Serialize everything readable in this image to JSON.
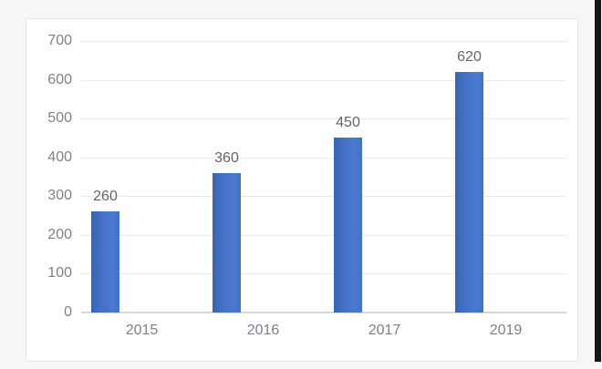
{
  "window": {
    "background": "#f7f7f9",
    "panel_background": "#ffffff",
    "panel_border": "#e4e4e8",
    "right_edge_color": "#161616"
  },
  "chart_data": {
    "type": "bar",
    "title": "",
    "xlabel": "",
    "ylabel": "",
    "categories": [
      "2015",
      "2016",
      "2017",
      "2019"
    ],
    "values": [
      260,
      360,
      450,
      620
    ],
    "data_labels": [
      "260",
      "360",
      "450",
      "620"
    ],
    "ylim": [
      0,
      700
    ],
    "ytick_interval": 100,
    "yticks": [
      0,
      100,
      200,
      300,
      400,
      500,
      600,
      700
    ],
    "grid": true,
    "legend": false,
    "colors": {
      "bar": "#4471c4",
      "bar_shade_left": "#3a64b2",
      "bar_shade_right": "#4a79d1",
      "gridline": "#eaeaef",
      "axis_line": "#d7d7dc",
      "tick_label": "#80808a",
      "value_label": "#646468"
    }
  }
}
